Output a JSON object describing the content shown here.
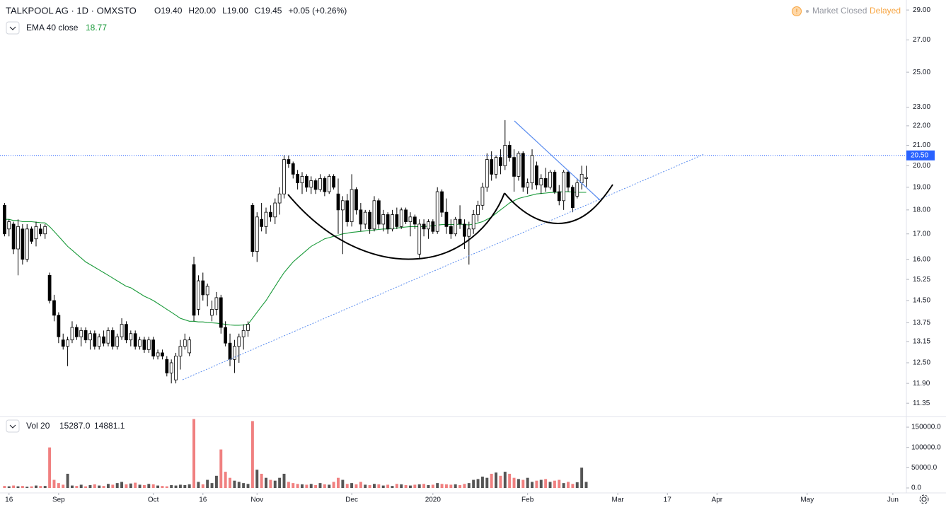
{
  "chart_data": {
    "type": "candlestick",
    "title": "TALKPOOL AG · 1D · OMXSTO",
    "ohlc_labels": [
      "O19.40",
      "H20.00",
      "L19.00",
      "C19.45",
      "+0.05 (+0.26%)"
    ],
    "status": [
      "Market Closed",
      "Delayed"
    ],
    "ema_legend": {
      "name": "EMA 40 close",
      "value": "18.77"
    },
    "vol_legend": {
      "name": "Vol 20",
      "values": [
        "15287.0",
        "14881.1"
      ]
    },
    "log_scale": true,
    "up_color": "#ffffff",
    "down_color": "#000000",
    "ema_color": "#1a9a3a",
    "vol_up_color": "#555555",
    "vol_down_color": "#f08080",
    "xlim": [
      -1,
      200
    ],
    "xticks": [
      {
        "value": 1,
        "label": "16"
      },
      {
        "value": 12,
        "label": "Sep"
      },
      {
        "value": 33,
        "label": "Oct"
      },
      {
        "value": 44,
        "label": "16"
      },
      {
        "value": 56,
        "label": "Nov"
      },
      {
        "value": 77,
        "label": "Dec"
      },
      {
        "value": 95,
        "label": "2020"
      },
      {
        "value": 116,
        "label": "Feb"
      },
      {
        "value": 136,
        "label": "Mar"
      },
      {
        "value": 147,
        "label": "17"
      },
      {
        "value": 158,
        "label": "Apr"
      },
      {
        "value": 178,
        "label": "May"
      },
      {
        "value": 197,
        "label": "Jun"
      }
    ],
    "ylim": [
      11.07,
      29.7
    ],
    "yticks": [
      {
        "value": 29,
        "label": "29.00"
      },
      {
        "value": 27,
        "label": "27.00"
      },
      {
        "value": 25,
        "label": "25.00"
      },
      {
        "value": 23,
        "label": "23.00"
      },
      {
        "value": 22,
        "label": "22.00"
      },
      {
        "value": 21,
        "label": "21.00"
      },
      {
        "value": 20,
        "label": "20.00"
      },
      {
        "value": 19,
        "label": "19.00"
      },
      {
        "value": 18,
        "label": "18.00"
      },
      {
        "value": 17,
        "label": "17.00"
      },
      {
        "value": 16,
        "label": "16.00"
      },
      {
        "value": 15.25,
        "label": "15.25"
      },
      {
        "value": 14.5,
        "label": "14.50"
      },
      {
        "value": 13.75,
        "label": "13.75"
      },
      {
        "value": 13.15,
        "label": "13.15"
      },
      {
        "value": 12.5,
        "label": "12.50"
      },
      {
        "value": 11.9,
        "label": "11.90"
      },
      {
        "value": 11.35,
        "label": "11.35"
      }
    ],
    "price_line": {
      "value": 20.5,
      "label": "20.50",
      "color": "#2962ff"
    },
    "vol_ylim": [
      0,
      174500
    ],
    "vol_yticks": [
      {
        "value": 150000,
        "label": "150000.0"
      },
      {
        "value": 100000,
        "label": "100000.0"
      },
      {
        "value": 50000,
        "label": "50000.0"
      },
      {
        "value": 0,
        "label": "0.0"
      }
    ],
    "candles": [
      [
        18.2,
        18.3,
        16.9,
        17.0
      ],
      [
        17.2,
        17.6,
        16.9,
        17.5
      ],
      [
        17.4,
        17.5,
        16.2,
        16.4
      ],
      [
        16.4,
        17.6,
        15.4,
        17.3
      ],
      [
        17.2,
        17.4,
        15.8,
        16.0
      ],
      [
        16.0,
        17.4,
        15.9,
        17.2
      ],
      [
        17.2,
        17.3,
        16.6,
        16.7
      ],
      [
        16.8,
        17.5,
        16.5,
        17.3
      ],
      [
        17.2,
        17.4,
        16.9,
        17.0
      ],
      [
        17.0,
        17.4,
        16.8,
        17.3
      ],
      [
        15.4,
        15.5,
        14.4,
        14.5
      ],
      [
        14.5,
        14.7,
        13.8,
        14.0
      ],
      [
        14.0,
        14.1,
        13.1,
        13.3
      ],
      [
        13.2,
        13.4,
        12.9,
        13.0
      ],
      [
        13.0,
        13.3,
        12.4,
        13.2
      ],
      [
        13.2,
        13.8,
        13.1,
        13.6
      ],
      [
        13.6,
        13.7,
        13.2,
        13.3
      ],
      [
        13.3,
        13.6,
        13.0,
        13.5
      ],
      [
        13.5,
        13.6,
        13.1,
        13.2
      ],
      [
        13.2,
        13.5,
        12.9,
        13.4
      ],
      [
        13.4,
        13.5,
        12.9,
        13.0
      ],
      [
        13.0,
        13.4,
        12.9,
        13.3
      ],
      [
        13.3,
        13.5,
        13.0,
        13.1
      ],
      [
        13.1,
        13.6,
        13.0,
        13.5
      ],
      [
        13.5,
        13.6,
        12.9,
        13.0
      ],
      [
        13.0,
        13.4,
        12.9,
        13.3
      ],
      [
        13.3,
        13.9,
        13.2,
        13.7
      ],
      [
        13.7,
        13.8,
        13.1,
        13.2
      ],
      [
        13.2,
        13.5,
        13.0,
        13.4
      ],
      [
        13.4,
        13.5,
        12.9,
        13.0
      ],
      [
        13.0,
        13.3,
        12.9,
        13.2
      ],
      [
        13.2,
        13.3,
        12.8,
        12.9
      ],
      [
        12.9,
        13.3,
        12.8,
        13.2
      ],
      [
        13.2,
        13.3,
        12.6,
        12.7
      ],
      [
        12.7,
        12.9,
        12.6,
        12.8
      ],
      [
        12.8,
        12.9,
        12.6,
        12.7
      ],
      [
        12.6,
        12.7,
        12.1,
        12.2
      ],
      [
        12.2,
        12.6,
        11.9,
        12.5
      ],
      [
        12.0,
        12.8,
        11.9,
        12.7
      ],
      [
        12.7,
        13.2,
        12.3,
        13.0
      ],
      [
        13.0,
        13.4,
        12.9,
        13.2
      ],
      [
        12.8,
        13.3,
        12.7,
        13.2
      ],
      [
        15.8,
        16.1,
        13.8,
        14.0
      ],
      [
        14.2,
        15.4,
        14.0,
        15.2
      ],
      [
        15.2,
        15.5,
        14.5,
        14.7
      ],
      [
        14.7,
        15.1,
        14.3,
        15.0
      ],
      [
        14.0,
        14.5,
        13.8,
        14.2
      ],
      [
        14.2,
        14.8,
        14.0,
        14.6
      ],
      [
        14.6,
        14.7,
        13.4,
        13.6
      ],
      [
        13.6,
        13.8,
        13.0,
        13.1
      ],
      [
        13.1,
        13.4,
        12.4,
        12.6
      ],
      [
        12.6,
        13.2,
        12.2,
        13.0
      ],
      [
        13.0,
        13.4,
        12.5,
        13.3
      ],
      [
        13.3,
        13.7,
        12.9,
        13.5
      ],
      [
        13.5,
        13.8,
        13.3,
        13.7
      ],
      [
        18.2,
        18.3,
        16.1,
        16.3
      ],
      [
        16.3,
        17.9,
        15.9,
        17.7
      ],
      [
        17.6,
        18.3,
        17.1,
        17.3
      ],
      [
        17.3,
        18.1,
        17.0,
        17.9
      ],
      [
        17.9,
        18.2,
        17.5,
        17.7
      ],
      [
        17.7,
        18.5,
        17.4,
        18.3
      ],
      [
        18.3,
        19.0,
        17.8,
        18.7
      ],
      [
        18.7,
        20.5,
        18.5,
        20.3
      ],
      [
        20.3,
        20.5,
        19.9,
        20.1
      ],
      [
        20.1,
        20.2,
        19.4,
        19.6
      ],
      [
        19.6,
        19.8,
        18.9,
        19.2
      ],
      [
        19.2,
        19.7,
        18.7,
        19.5
      ],
      [
        19.5,
        19.6,
        18.8,
        19.0
      ],
      [
        19.0,
        19.5,
        18.7,
        19.3
      ],
      [
        19.3,
        19.4,
        18.7,
        18.9
      ],
      [
        18.9,
        19.6,
        18.8,
        19.4
      ],
      [
        19.4,
        19.5,
        18.6,
        18.8
      ],
      [
        18.8,
        19.6,
        18.7,
        19.5
      ],
      [
        19.5,
        19.6,
        18.9,
        19.0
      ],
      [
        18.7,
        19.4,
        17.0,
        18.0
      ],
      [
        18.0,
        18.6,
        16.2,
        18.4
      ],
      [
        18.4,
        18.7,
        17.3,
        17.5
      ],
      [
        17.5,
        19.6,
        17.3,
        18.9
      ],
      [
        18.9,
        19.0,
        17.8,
        18.0
      ],
      [
        18.0,
        18.3,
        17.1,
        17.4
      ],
      [
        17.4,
        18.0,
        17.2,
        17.9
      ],
      [
        17.9,
        18.0,
        17.0,
        17.2
      ],
      [
        17.2,
        18.6,
        17.1,
        18.4
      ],
      [
        18.4,
        18.5,
        17.2,
        17.4
      ],
      [
        17.4,
        18.0,
        17.1,
        17.8
      ],
      [
        17.8,
        17.9,
        17.0,
        17.2
      ],
      [
        17.2,
        18.0,
        17.1,
        17.8
      ],
      [
        17.8,
        18.1,
        17.2,
        17.3
      ],
      [
        17.3,
        18.1,
        17.2,
        18.0
      ],
      [
        18.0,
        18.1,
        17.4,
        17.5
      ],
      [
        17.5,
        17.9,
        16.9,
        17.7
      ],
      [
        17.7,
        17.8,
        17.2,
        17.4
      ],
      [
        16.2,
        17.6,
        16.0,
        17.4
      ],
      [
        17.4,
        17.6,
        16.9,
        17.2
      ],
      [
        17.2,
        17.6,
        16.8,
        17.5
      ],
      [
        17.5,
        17.6,
        17.0,
        17.1
      ],
      [
        17.1,
        19.0,
        17.0,
        18.8
      ],
      [
        18.8,
        18.9,
        17.7,
        17.9
      ],
      [
        17.9,
        18.5,
        17.0,
        17.3
      ],
      [
        17.3,
        17.6,
        16.8,
        17.0
      ],
      [
        17.0,
        17.7,
        16.9,
        17.6
      ],
      [
        17.6,
        18.2,
        17.2,
        17.4
      ],
      [
        17.4,
        17.6,
        16.4,
        16.9
      ],
      [
        16.9,
        17.5,
        15.8,
        17.2
      ],
      [
        17.2,
        18.0,
        17.0,
        17.8
      ],
      [
        17.8,
        18.4,
        17.5,
        18.2
      ],
      [
        18.2,
        19.2,
        18.0,
        19.0
      ],
      [
        19.0,
        20.6,
        18.8,
        20.3
      ],
      [
        20.3,
        20.7,
        19.3,
        19.6
      ],
      [
        19.6,
        20.5,
        19.4,
        20.4
      ],
      [
        20.4,
        20.8,
        19.6,
        20.0
      ],
      [
        20.0,
        22.3,
        19.8,
        21.0
      ],
      [
        21.0,
        21.2,
        20.2,
        20.4
      ],
      [
        20.4,
        20.8,
        18.8,
        19.5
      ],
      [
        19.5,
        20.7,
        19.3,
        20.6
      ],
      [
        20.6,
        20.7,
        18.8,
        19.0
      ],
      [
        19.0,
        19.4,
        18.7,
        19.2
      ],
      [
        19.2,
        20.8,
        18.9,
        20.5
      ],
      [
        20.0,
        20.2,
        18.9,
        19.1
      ],
      [
        19.1,
        19.6,
        18.7,
        19.4
      ],
      [
        19.4,
        19.9,
        18.8,
        19.0
      ],
      [
        19.0,
        19.8,
        18.9,
        19.7
      ],
      [
        19.7,
        19.8,
        18.7,
        18.8
      ],
      [
        18.8,
        19.1,
        18.2,
        18.4
      ],
      [
        18.4,
        19.8,
        18.0,
        19.7
      ],
      [
        19.7,
        19.8,
        18.8,
        19.0
      ],
      [
        19.0,
        19.1,
        17.9,
        18.1
      ],
      [
        18.6,
        19.4,
        18.5,
        19.2
      ],
      [
        19.2,
        20.0,
        18.9,
        19.6
      ],
      [
        19.4,
        20.0,
        19.0,
        19.45
      ]
    ],
    "ema": [
      17.6,
      17.6,
      17.55,
      17.55,
      17.5,
      17.5,
      17.5,
      17.48,
      17.46,
      17.45,
      17.3,
      17.1,
      16.9,
      16.7,
      16.5,
      16.35,
      16.2,
      16.05,
      15.9,
      15.8,
      15.7,
      15.6,
      15.5,
      15.4,
      15.3,
      15.2,
      15.1,
      15.0,
      14.95,
      14.85,
      14.75,
      14.65,
      14.58,
      14.5,
      14.4,
      14.3,
      14.2,
      14.1,
      14.0,
      13.9,
      13.85,
      13.8,
      13.8,
      13.78,
      13.78,
      13.76,
      13.75,
      13.74,
      13.72,
      13.7,
      13.68,
      13.67,
      13.67,
      13.68,
      13.7,
      13.9,
      14.1,
      14.3,
      14.5,
      14.75,
      15.0,
      15.25,
      15.5,
      15.7,
      15.9,
      16.05,
      16.2,
      16.35,
      16.5,
      16.6,
      16.7,
      16.8,
      16.85,
      16.9,
      16.95,
      17.0,
      17.03,
      17.06,
      17.08,
      17.1,
      17.12,
      17.14,
      17.16,
      17.18,
      17.2,
      17.2,
      17.22,
      17.24,
      17.26,
      17.28,
      17.3,
      17.3,
      17.3,
      17.3,
      17.32,
      17.33,
      17.36,
      17.38,
      17.38,
      17.38,
      17.38,
      17.4,
      17.38,
      17.37,
      17.4,
      17.45,
      17.5,
      17.6,
      17.7,
      17.85,
      18.0,
      18.15,
      18.3,
      18.4,
      18.5,
      18.55,
      18.6,
      18.65,
      18.7,
      18.72,
      18.74,
      18.76,
      18.77,
      18.78,
      18.8,
      18.8,
      18.78,
      18.77,
      18.77,
      18.77
    ],
    "volume": [
      5000,
      4000,
      6000,
      4000,
      5000,
      3000,
      4000,
      6000,
      5000,
      5000,
      100000,
      20000,
      12000,
      8000,
      35000,
      6000,
      5000,
      8000,
      4000,
      7000,
      9000,
      6000,
      5000,
      10000,
      8000,
      12000,
      15000,
      9000,
      11000,
      13000,
      8000,
      7000,
      10000,
      9000,
      6000,
      5000,
      4000,
      7000,
      6000,
      8000,
      7000,
      9000,
      170000,
      15000,
      9000,
      20000,
      12000,
      30000,
      95000,
      40000,
      25000,
      18000,
      15000,
      12000,
      10000,
      165000,
      45000,
      35000,
      25000,
      20000,
      18000,
      25000,
      35000,
      15000,
      12000,
      10000,
      9000,
      8000,
      10000,
      7000,
      12000,
      9000,
      8000,
      15000,
      25000,
      20000,
      10000,
      12000,
      9000,
      15000,
      8000,
      7000,
      10000,
      9000,
      6000,
      8000,
      5000,
      10000,
      9000,
      7000,
      6000,
      8000,
      9000,
      10000,
      7000,
      8000,
      12000,
      10000,
      9000,
      8000,
      9000,
      7000,
      10000,
      12000,
      20000,
      22000,
      28000,
      25000,
      35000,
      38000,
      30000,
      40000,
      35000,
      25000,
      22000,
      20000,
      25000,
      15000,
      18000,
      20000,
      22000,
      15000,
      18000,
      20000,
      12000,
      15000,
      10000,
      14000,
      50000,
      15000
    ]
  }
}
